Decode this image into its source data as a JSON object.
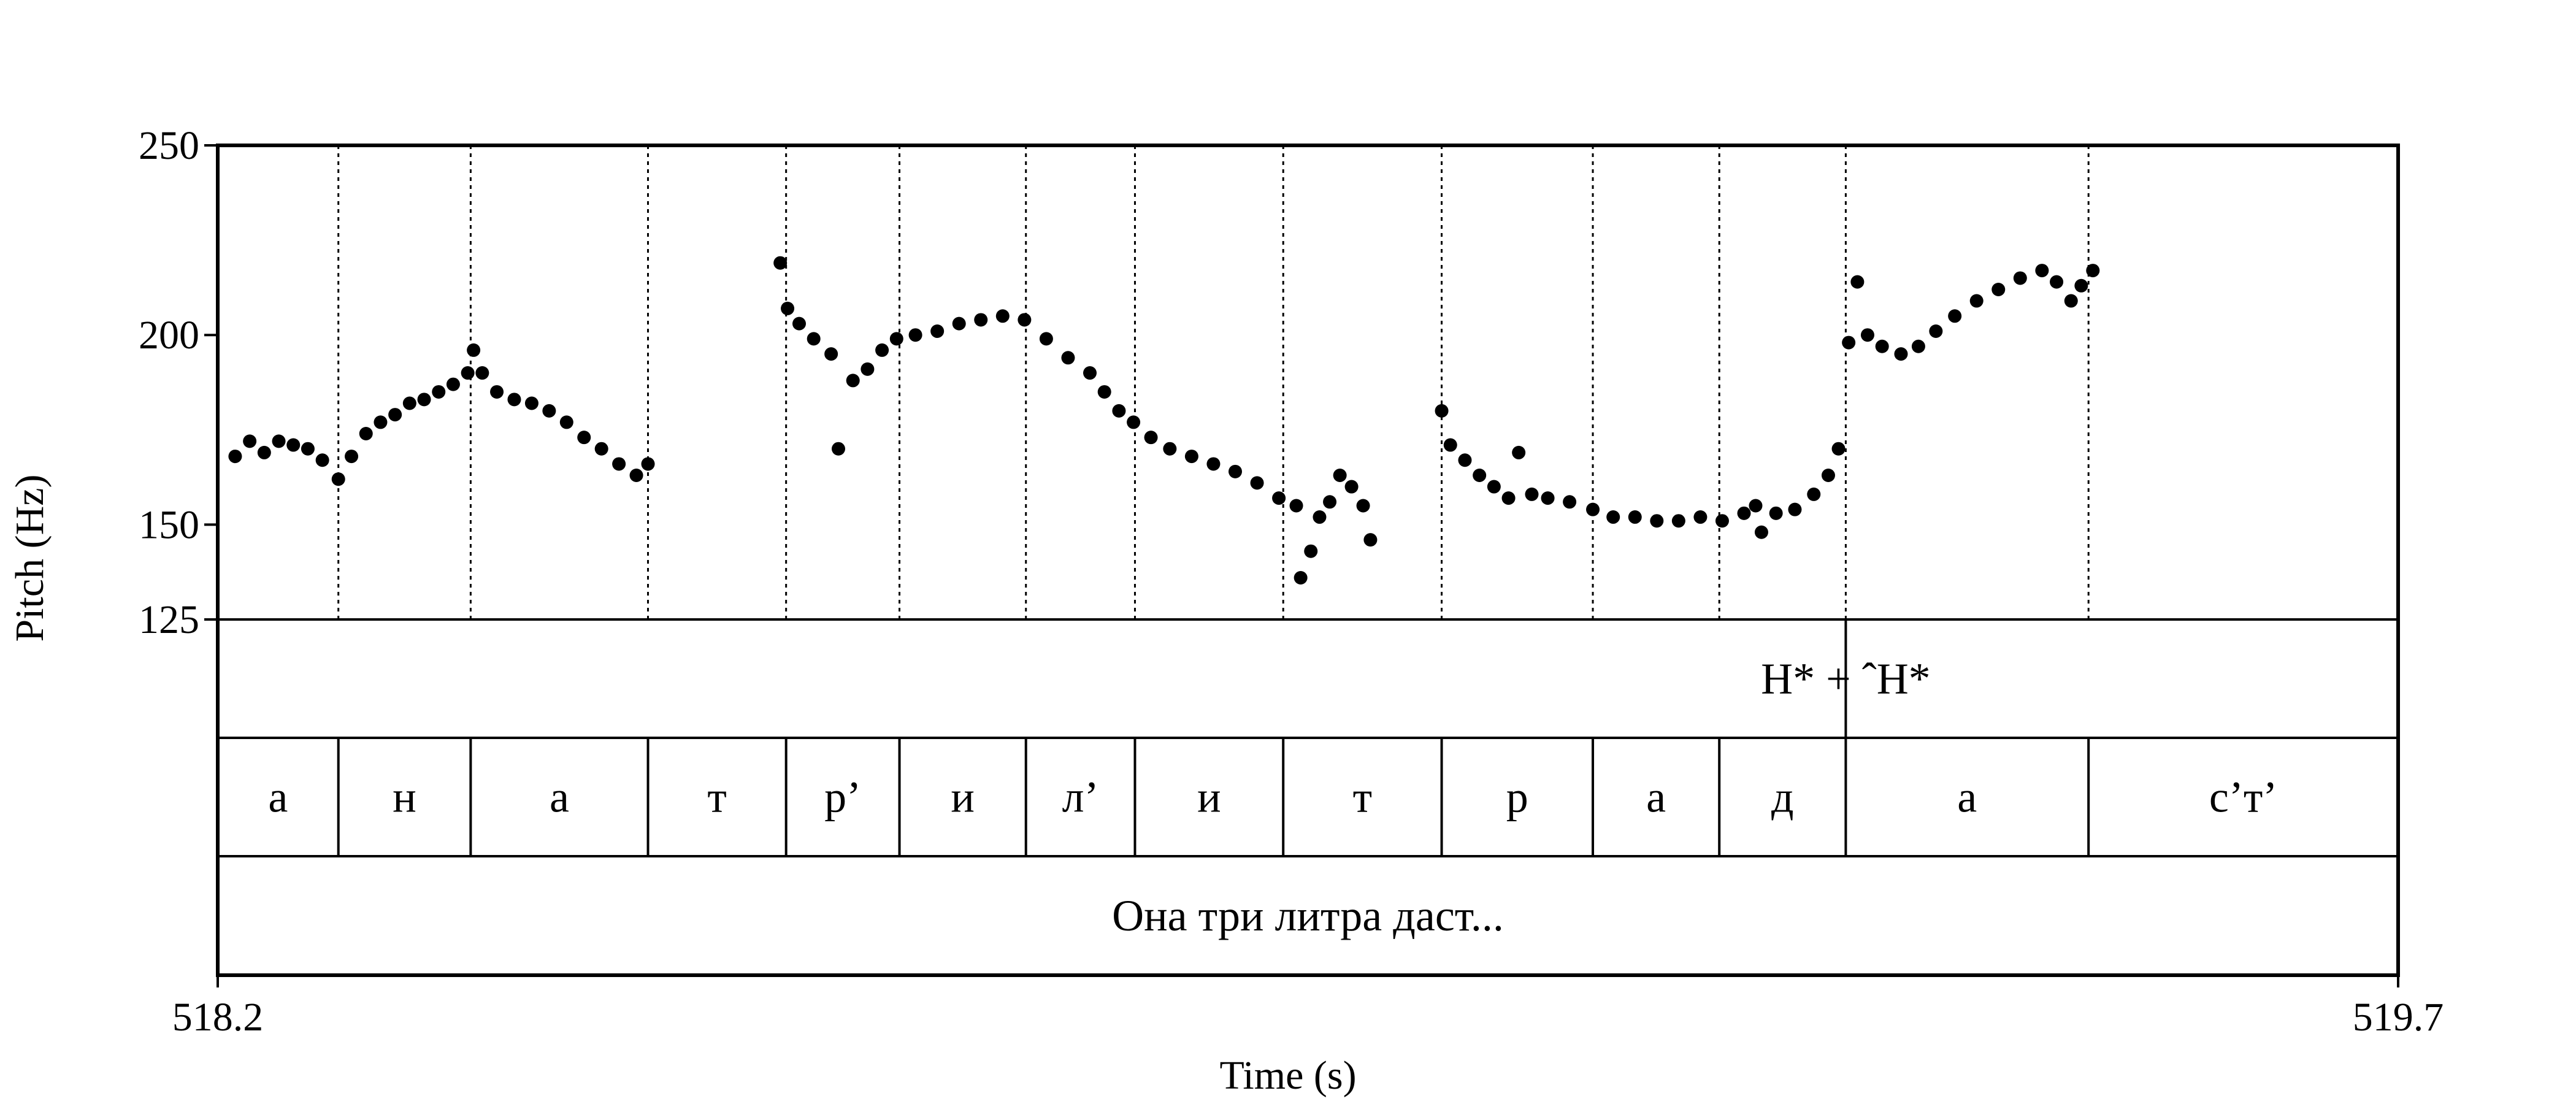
{
  "chart_data": {
    "type": "scatter",
    "title": "",
    "xlabel": "Time (s)",
    "ylabel": "Pitch (Hz)",
    "xlim": [
      518.2,
      519.7
    ],
    "ylim": [
      125,
      250
    ],
    "x_tick_labels": [
      "518.2",
      "519.7"
    ],
    "y_ticks": [
      250,
      200,
      150,
      125
    ],
    "y_tick_labels": [
      "250",
      "200",
      "150",
      "125"
    ],
    "boundaries": [
      518.283,
      518.374,
      518.496,
      518.591,
      518.669,
      518.756,
      518.831,
      518.933,
      519.042,
      519.146,
      519.233,
      519.32,
      519.487
    ],
    "tone_tier": {
      "label": "H* + ˆH*",
      "mark_time": 519.32
    },
    "segments": [
      {
        "label": "а",
        "start": 518.2,
        "end": 518.283
      },
      {
        "label": "н",
        "start": 518.283,
        "end": 518.374
      },
      {
        "label": "а",
        "start": 518.374,
        "end": 518.496
      },
      {
        "label": "т",
        "start": 518.496,
        "end": 518.591
      },
      {
        "label": "р’",
        "start": 518.591,
        "end": 518.669
      },
      {
        "label": "и",
        "start": 518.669,
        "end": 518.756
      },
      {
        "label": "л’",
        "start": 518.756,
        "end": 518.831
      },
      {
        "label": "и",
        "start": 518.831,
        "end": 518.933
      },
      {
        "label": "т",
        "start": 518.933,
        "end": 519.042
      },
      {
        "label": "р",
        "start": 519.042,
        "end": 519.146
      },
      {
        "label": "а",
        "start": 519.146,
        "end": 519.233
      },
      {
        "label": "д",
        "start": 519.233,
        "end": 519.32
      },
      {
        "label": "а",
        "start": 519.32,
        "end": 519.487
      },
      {
        "label": "с’т’",
        "start": 519.487,
        "end": 519.7
      }
    ],
    "sentence": "Она три литра даст...",
    "pitch_series": [
      {
        "points": [
          [
            518.212,
            168
          ],
          [
            518.222,
            172
          ],
          [
            518.232,
            169
          ],
          [
            518.242,
            172
          ],
          [
            518.252,
            171
          ],
          [
            518.262,
            170
          ],
          [
            518.272,
            167
          ],
          [
            518.283,
            162
          ],
          [
            518.292,
            168
          ],
          [
            518.302,
            174
          ],
          [
            518.312,
            177
          ],
          [
            518.322,
            179
          ],
          [
            518.332,
            182
          ],
          [
            518.342,
            183
          ],
          [
            518.352,
            185
          ],
          [
            518.362,
            187
          ],
          [
            518.372,
            190
          ],
          [
            518.376,
            196
          ],
          [
            518.382,
            190
          ],
          [
            518.392,
            185
          ],
          [
            518.404,
            183
          ],
          [
            518.416,
            182
          ],
          [
            518.428,
            180
          ],
          [
            518.44,
            177
          ],
          [
            518.452,
            173
          ],
          [
            518.464,
            170
          ],
          [
            518.476,
            166
          ],
          [
            518.488,
            163
          ],
          [
            518.496,
            166
          ]
        ]
      },
      {
        "points": [
          [
            518.587,
            219
          ],
          [
            518.592,
            207
          ],
          [
            518.6,
            203
          ],
          [
            518.61,
            199
          ],
          [
            518.622,
            195
          ],
          [
            518.627,
            170
          ],
          [
            518.637,
            188
          ],
          [
            518.647,
            191
          ],
          [
            518.657,
            196
          ],
          [
            518.667,
            199
          ],
          [
            518.68,
            200
          ],
          [
            518.695,
            201
          ],
          [
            518.71,
            203
          ],
          [
            518.725,
            204
          ],
          [
            518.74,
            205
          ],
          [
            518.755,
            204
          ],
          [
            518.77,
            199
          ],
          [
            518.785,
            194
          ],
          [
            518.8,
            190
          ],
          [
            518.81,
            185
          ],
          [
            518.82,
            180
          ],
          [
            518.83,
            177
          ],
          [
            518.842,
            173
          ],
          [
            518.855,
            170
          ],
          [
            518.87,
            168
          ],
          [
            518.885,
            166
          ],
          [
            518.9,
            164
          ],
          [
            518.915,
            161
          ],
          [
            518.93,
            157
          ],
          [
            518.942,
            155
          ],
          [
            518.945,
            136
          ],
          [
            518.952,
            143
          ],
          [
            518.958,
            152
          ],
          [
            518.965,
            156
          ],
          [
            518.972,
            163
          ],
          [
            518.98,
            160
          ],
          [
            518.988,
            155
          ],
          [
            518.993,
            146
          ]
        ]
      },
      {
        "points": [
          [
            519.042,
            180
          ],
          [
            519.048,
            171
          ],
          [
            519.058,
            167
          ],
          [
            519.068,
            163
          ],
          [
            519.078,
            160
          ],
          [
            519.088,
            157
          ],
          [
            519.095,
            169
          ],
          [
            519.104,
            158
          ],
          [
            519.115,
            157
          ],
          [
            519.13,
            156
          ],
          [
            519.146,
            154
          ],
          [
            519.16,
            152
          ],
          [
            519.175,
            152
          ],
          [
            519.19,
            151
          ],
          [
            519.205,
            151
          ],
          [
            519.22,
            152
          ],
          [
            519.235,
            151
          ],
          [
            519.25,
            153
          ],
          [
            519.258,
            155
          ],
          [
            519.262,
            148
          ],
          [
            519.272,
            153
          ],
          [
            519.285,
            154
          ],
          [
            519.298,
            158
          ],
          [
            519.308,
            163
          ],
          [
            519.315,
            170
          ],
          [
            519.322,
            198
          ],
          [
            519.328,
            214
          ],
          [
            519.335,
            200
          ],
          [
            519.345,
            197
          ],
          [
            519.358,
            195
          ],
          [
            519.37,
            197
          ],
          [
            519.382,
            201
          ],
          [
            519.395,
            205
          ],
          [
            519.41,
            209
          ],
          [
            519.425,
            212
          ],
          [
            519.44,
            215
          ],
          [
            519.455,
            217
          ],
          [
            519.465,
            214
          ],
          [
            519.475,
            209
          ],
          [
            519.482,
            213
          ],
          [
            519.49,
            217
          ]
        ]
      }
    ]
  }
}
